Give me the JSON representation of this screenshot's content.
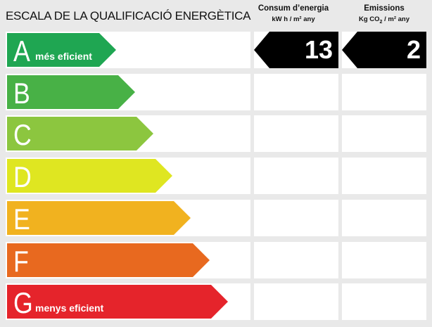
{
  "title": "ESCALA DE LA QUALIFICACIÓ ENERGÈTICA",
  "columns": [
    {
      "heading": "Consum d’energia",
      "unit_pre": "kW h / m² any",
      "value": "13",
      "rating": "A"
    },
    {
      "heading": "Emissions",
      "unit_pre": "Kg CO",
      "unit_sub": "2",
      "unit_post": " / m² any",
      "value": "2",
      "rating": "A"
    }
  ],
  "classes": [
    {
      "letter": "A",
      "label": "més eficient",
      "color": "#1fa652"
    },
    {
      "letter": "B",
      "label": "",
      "color": "#48b146"
    },
    {
      "letter": "C",
      "label": "",
      "color": "#8cc63f"
    },
    {
      "letter": "D",
      "label": "",
      "color": "#dfe621"
    },
    {
      "letter": "E",
      "label": "",
      "color": "#f1b21f"
    },
    {
      "letter": "F",
      "label": "",
      "color": "#e8691f"
    },
    {
      "letter": "G",
      "label": "menys eficient",
      "color": "#e5242b"
    }
  ]
}
